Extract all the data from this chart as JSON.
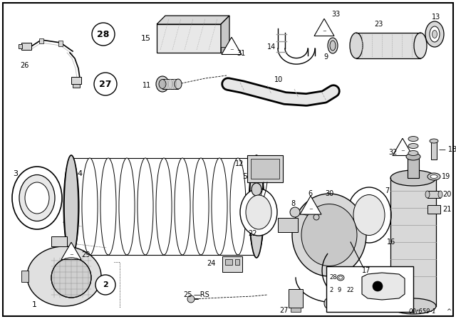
{
  "bg_color": "#ffffff",
  "diagram_label": "00r659-1",
  "figsize": [
    6.4,
    4.48
  ],
  "dpi": 100
}
